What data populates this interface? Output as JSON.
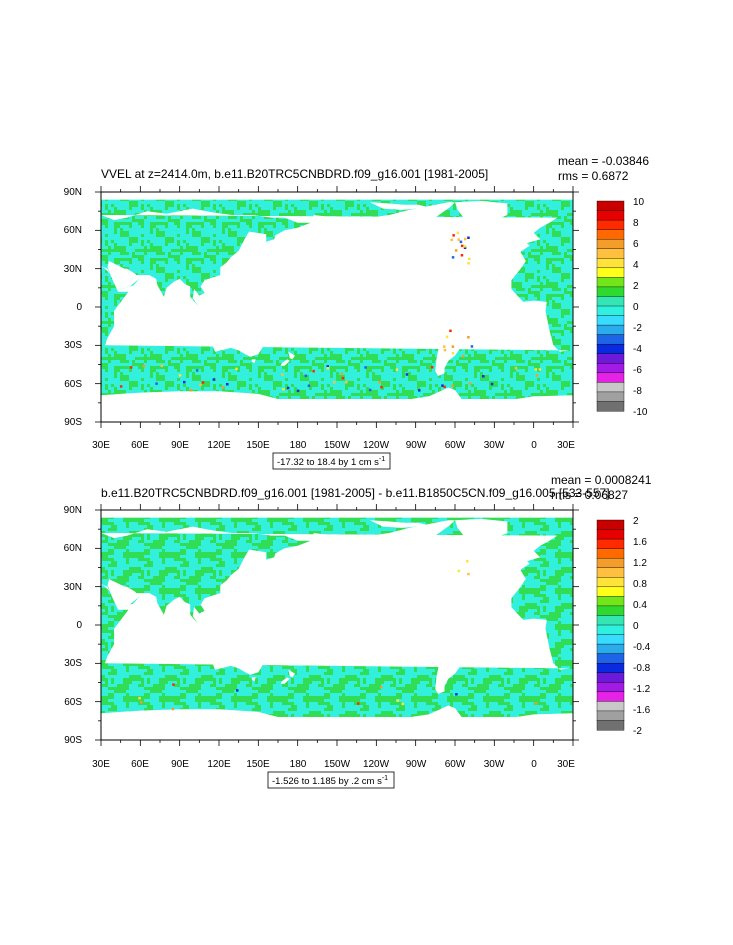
{
  "chart_data": [
    {
      "type": "heatmap",
      "title": "VVEL at z=2414.0m, b.e11.B20TRC5CNBDRD.f09_g16.001 [1981-2005]",
      "stats": {
        "mean": "mean = -0.03846",
        "rms": "rms = 0.6872"
      },
      "y_ticks": [
        "90N",
        "60N",
        "30N",
        "0",
        "30S",
        "60S",
        "90S"
      ],
      "x_ticks": [
        "30E",
        "60E",
        "90E",
        "120E",
        "150E",
        "180",
        "150W",
        "120W",
        "90W",
        "60W",
        "30W",
        "0",
        "30E"
      ],
      "colorbar_labels": [
        "10",
        "8",
        "6",
        "4",
        "2",
        "0",
        "-2",
        "-4",
        "-6",
        "-8",
        "-10"
      ],
      "range_text": {
        "main": "-17.32 to 18.4 by 1 cm s",
        "sup": "-1"
      },
      "dominant_values": "mostly within -1 to 1 (green/cyan), extremes along western boundaries and Southern Ocean"
    },
    {
      "type": "heatmap",
      "title": "b.e11.B20TRC5CNBDRD.f09_g16.001 [1981-2005] - b.e11.B1850C5CN.f09_g16.005 [533-557]",
      "stats": {
        "mean": "mean = 0.0008241",
        "rms": "rms = 0.06827"
      },
      "y_ticks": [
        "90N",
        "60N",
        "30N",
        "0",
        "30S",
        "60S",
        "90S"
      ],
      "x_ticks": [
        "30E",
        "60E",
        "90E",
        "120E",
        "150E",
        "180",
        "150W",
        "120W",
        "90W",
        "60W",
        "30W",
        "0",
        "30E"
      ],
      "colorbar_labels": [
        "2",
        "1.6",
        "1.2",
        "0.8",
        "0.4",
        "0",
        "-0.4",
        "-0.8",
        "-1.2",
        "-1.6",
        "-2"
      ],
      "range_text": {
        "main": "-1.526 to 1.185 by .2 cm s",
        "sup": "-1"
      },
      "dominant_values": "mostly within -0.2 to 0.2 (green/cyan)"
    }
  ],
  "colors": {
    "palette_top_to_bottom": [
      "#c80000",
      "#e60000",
      "#ff2a00",
      "#ff6a00",
      "#f59d2a",
      "#ffc040",
      "#ffe23a",
      "#ffff1a",
      "#73e61a",
      "#30d930",
      "#33e6b3",
      "#30f0e0",
      "#38dcff",
      "#2aacec",
      "#1e64e6",
      "#0a2ae0",
      "#6a1ad8",
      "#a21ae6",
      "#e622e6",
      "#c8c8c8",
      "#a0a0a0",
      "#707070"
    ],
    "green": "#30dd55",
    "cyan": "#33f0dc",
    "land": "#ffffff"
  }
}
